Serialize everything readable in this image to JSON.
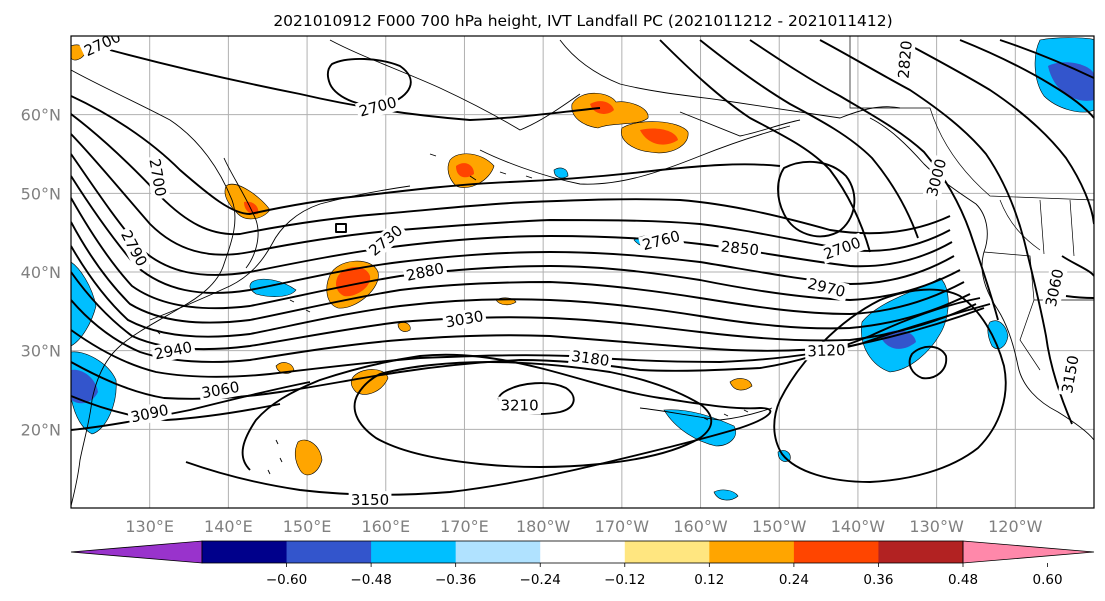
{
  "figure": {
    "title": "2021010912 F000 700 hPa height, IVT Landfall PC (2021011212 - 2021011412)"
  },
  "map": {
    "lat_labels": [
      {
        "label": "60°N",
        "lat": 60
      },
      {
        "label": "50°N",
        "lat": 50
      },
      {
        "label": "40°N",
        "lat": 40
      },
      {
        "label": "30°N",
        "lat": 30
      },
      {
        "label": "20°N",
        "lat": 20
      }
    ],
    "lon_labels": [
      {
        "label": "130°E",
        "lon": 130
      },
      {
        "label": "140°E",
        "lon": 140
      },
      {
        "label": "150°E",
        "lon": 150
      },
      {
        "label": "160°E",
        "lon": 160
      },
      {
        "label": "170°E",
        "lon": 170
      },
      {
        "label": "180°W",
        "lon": 180
      },
      {
        "label": "170°W",
        "lon": 190
      },
      {
        "label": "160°W",
        "lon": 200
      },
      {
        "label": "150°W",
        "lon": 210
      },
      {
        "label": "140°W",
        "lon": 220
      },
      {
        "label": "130°W",
        "lon": 230
      },
      {
        "label": "120°W",
        "lon": 240
      }
    ],
    "lon_range": [
      120,
      250
    ],
    "lat_range": [
      10,
      70
    ],
    "contour_labels": [
      {
        "text": "2700",
        "lon": 124,
        "lat": 69,
        "rot": -25
      },
      {
        "text": "2700",
        "lon": 159,
        "lat": 61,
        "rot": -15
      },
      {
        "text": "2700",
        "lon": 131,
        "lat": 52,
        "rot": 80
      },
      {
        "text": "2790",
        "lon": 128,
        "lat": 43,
        "rot": 62
      },
      {
        "text": "2940",
        "lon": 133,
        "lat": 30,
        "rot": -12
      },
      {
        "text": "3060",
        "lon": 139,
        "lat": 25,
        "rot": -10
      },
      {
        "text": "3090",
        "lon": 130,
        "lat": 22,
        "rot": -12
      },
      {
        "text": "2730",
        "lon": 160,
        "lat": 44,
        "rot": -40
      },
      {
        "text": "2880",
        "lon": 165,
        "lat": 40,
        "rot": -12
      },
      {
        "text": "3030",
        "lon": 170,
        "lat": 34,
        "rot": -10
      },
      {
        "text": "2760",
        "lon": 195,
        "lat": 44,
        "rot": -15
      },
      {
        "text": "2850",
        "lon": 205,
        "lat": 43,
        "rot": 6
      },
      {
        "text": "2970",
        "lon": 216,
        "lat": 38,
        "rot": 14
      },
      {
        "text": "2700",
        "lon": 218,
        "lat": 43,
        "rot": -20
      },
      {
        "text": "3180",
        "lon": 186,
        "lat": 29,
        "rot": 8
      },
      {
        "text": "3120",
        "lon": 216,
        "lat": 30,
        "rot": -2
      },
      {
        "text": "3210",
        "lon": 177,
        "lat": 23,
        "rot": 0
      },
      {
        "text": "3150",
        "lon": 158,
        "lat": 11,
        "rot": 0
      },
      {
        "text": "2820",
        "lon": 226,
        "lat": 67,
        "rot": -85
      },
      {
        "text": "3000",
        "lon": 230,
        "lat": 52,
        "rot": -75
      },
      {
        "text": "3060",
        "lon": 245,
        "lat": 38,
        "rot": -78
      },
      {
        "text": "3150",
        "lon": 247,
        "lat": 27,
        "rot": -80
      }
    ]
  },
  "colorbar": {
    "colors": [
      "#9933cc",
      "#00008b",
      "#3355cc",
      "#00bfff",
      "#b0e2ff",
      "#ffffff",
      "#ffe680",
      "#ffa500",
      "#ff4500",
      "#b22222",
      "#ff88aa"
    ],
    "tick_labels": [
      "−0.60",
      "−0.48",
      "−0.36",
      "−0.24",
      "−0.12",
      "0.12",
      "0.24",
      "0.36",
      "0.48",
      "0.60"
    ]
  }
}
